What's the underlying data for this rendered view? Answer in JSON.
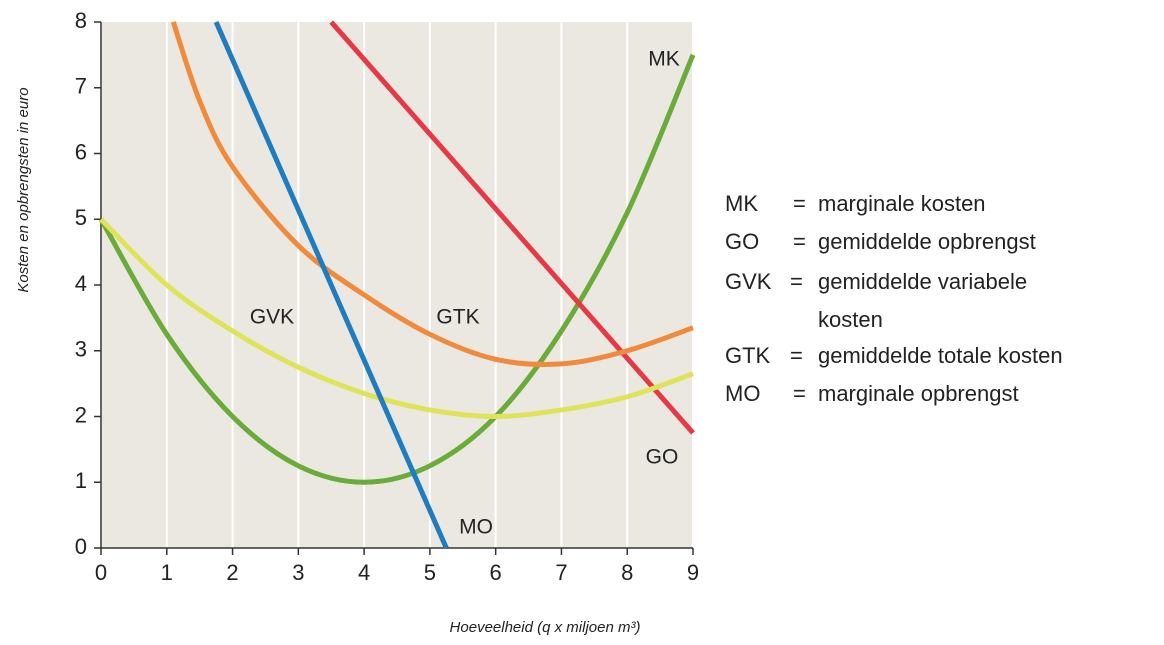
{
  "chart_data": {
    "type": "line",
    "xlabel": "Hoeveelheid (q x miljoen m³)",
    "ylabel": "Kosten en opbrengsten in euro",
    "xlim": [
      0,
      9
    ],
    "ylim": [
      0,
      8
    ],
    "xticks": [
      0,
      1,
      2,
      3,
      4,
      5,
      6,
      7,
      8,
      9
    ],
    "yticks": [
      0,
      1,
      2,
      3,
      4,
      5,
      6,
      7,
      8
    ],
    "grid": true,
    "series": [
      {
        "name": "MK",
        "color": "#6aab3a",
        "description": [
          "marginale kosten"
        ],
        "x": [
          0,
          1,
          2,
          3,
          4,
          5,
          6,
          7,
          8,
          9
        ],
        "values": [
          5,
          3.25,
          2,
          1.25,
          1,
          1.25,
          2,
          3.3,
          5.1,
          7.5
        ]
      },
      {
        "name": "GO",
        "color": "#e53a45",
        "description": [
          "gemiddelde opbrengst"
        ],
        "x": [
          3.5,
          9
        ],
        "values": [
          8,
          1.75
        ]
      },
      {
        "name": "GVK",
        "color": "#dfe35a",
        "description": [
          "gemiddelde variabele",
          "kosten"
        ],
        "x": [
          0,
          1,
          2,
          3,
          4,
          5,
          6,
          7,
          8,
          9
        ],
        "values": [
          5,
          4,
          3.3,
          2.75,
          2.35,
          2.1,
          2,
          2.1,
          2.3,
          2.65
        ]
      },
      {
        "name": "GTK",
        "color": "#f08a3c",
        "description": [
          "gemiddelde totale kosten"
        ],
        "x": [
          1.1,
          1.5,
          2,
          3,
          4,
          5,
          6,
          7,
          8,
          9
        ],
        "values": [
          8,
          6.8,
          5.8,
          4.6,
          3.85,
          3.25,
          2.87,
          2.8,
          3,
          3.35
        ]
      },
      {
        "name": "MO",
        "color": "#1f7dbf",
        "description": [
          "marginale opbrengst"
        ],
        "x": [
          1.75,
          5.25
        ],
        "values": [
          8,
          0
        ]
      }
    ]
  }
}
